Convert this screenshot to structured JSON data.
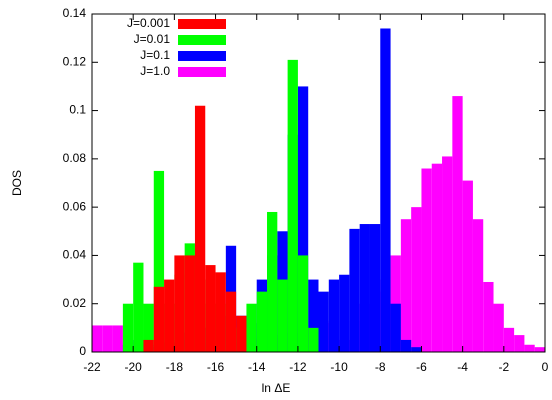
{
  "chart_data": {
    "type": "histogram",
    "x_label": "ln ΔE",
    "y_label": "DOS",
    "bins": [
      -22,
      -21.5,
      -21,
      -20.5,
      -20,
      -19.5,
      -19,
      -18.5,
      -18,
      -17.5,
      -17,
      -16.5,
      -16,
      -15.5,
      -15,
      -14.5,
      -14,
      -13.5,
      -13,
      -12.5,
      -12,
      -11.5,
      -11,
      -10.5,
      -10,
      -9.5,
      -9,
      -8.5,
      -8,
      -7.5,
      -7,
      -6.5,
      -6,
      -5.5,
      -5,
      -4.5,
      -4,
      -3.5,
      -3,
      -2.5,
      -2,
      -1.5,
      -1,
      -0.5,
      0
    ],
    "series": [
      {
        "name": "J=0.001",
        "color": "#ff0000",
        "values": [
          0,
          0,
          0,
          0,
          0,
          0.005,
          0.027,
          0.03,
          0.04,
          0.04,
          0.102,
          0.036,
          0.033,
          0.025,
          0.015,
          0,
          0,
          0,
          0,
          0,
          0,
          0,
          0,
          0,
          0,
          0,
          0,
          0,
          0,
          0,
          0,
          0,
          0,
          0,
          0,
          0,
          0,
          0,
          0,
          0,
          0,
          0,
          0,
          0
        ]
      },
      {
        "name": "J=0.01",
        "color": "#00ff00",
        "values": [
          0,
          0,
          0,
          0.02,
          0.037,
          0.02,
          0.075,
          0.02,
          0.032,
          0.045,
          0.03,
          0.02,
          0.02,
          0.01,
          0.01,
          0.02,
          0.025,
          0.058,
          0.03,
          0.121,
          0.04,
          0.01,
          0,
          0,
          0,
          0,
          0,
          0,
          0,
          0,
          0,
          0,
          0,
          0,
          0,
          0,
          0,
          0,
          0,
          0,
          0,
          0,
          0,
          0
        ]
      },
      {
        "name": "J=0.1",
        "color": "#0000ff",
        "values": [
          0,
          0,
          0,
          0.003,
          0.005,
          0.002,
          0.003,
          0.004,
          0.005,
          0.008,
          0.01,
          0.01,
          0.015,
          0.044,
          0.015,
          0.012,
          0.03,
          0.04,
          0.05,
          0.09,
          0.11,
          0.03,
          0.025,
          0.03,
          0.032,
          0.051,
          0.053,
          0.053,
          0.134,
          0.02,
          0.005,
          0.002,
          0,
          0,
          0,
          0,
          0,
          0,
          0,
          0,
          0,
          0,
          0,
          0
        ]
      },
      {
        "name": "J=1.0",
        "color": "#ff00ff",
        "values": [
          0.011,
          0.011,
          0.011,
          0.004,
          0.003,
          0.002,
          0.003,
          0.002,
          0.003,
          0.002,
          0.003,
          0.004,
          0.003,
          0.005,
          0.004,
          0.006,
          0.005,
          0.007,
          0.006,
          0.008,
          0.01,
          0.009,
          0.012,
          0.013,
          0.005,
          0.013,
          0.02,
          0.025,
          0.03,
          0.04,
          0.055,
          0.06,
          0.076,
          0.078,
          0.081,
          0.106,
          0.071,
          0.055,
          0.029,
          0.02,
          0.01,
          0.007,
          0.003,
          0.002
        ]
      }
    ],
    "xlim": [
      -22,
      0
    ],
    "ylim": [
      0,
      0.14
    ],
    "xticks": [
      -22,
      -20,
      -18,
      -16,
      -14,
      -12,
      -10,
      -8,
      -6,
      -4,
      -2,
      0
    ],
    "yticks": [
      0,
      0.02,
      0.04,
      0.06,
      0.08,
      0.1,
      0.12,
      0.14
    ],
    "legend": "top-left"
  }
}
